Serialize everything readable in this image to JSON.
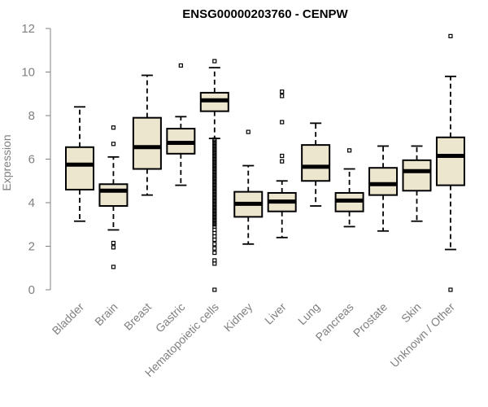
{
  "chart_data": {
    "type": "box",
    "title": "ENSG00000203760 - CENPW",
    "ylabel": "Expression",
    "ylim": [
      0,
      12
    ],
    "yticks": [
      0,
      2,
      4,
      6,
      8,
      10,
      12
    ],
    "grid": false,
    "box_color": "#ede6cf",
    "categories": [
      "Bladder",
      "Brain",
      "Breast",
      "Gastric",
      "Hematopoietic cells",
      "Kidney",
      "Liver",
      "Lung",
      "Pancreas",
      "Prostate",
      "Skin",
      "Unknown / Other"
    ],
    "boxes": [
      {
        "category": "Bladder",
        "whisker_low": 3.15,
        "q1": 4.6,
        "median": 5.75,
        "q3": 6.55,
        "whisker_high": 8.4,
        "outliers": []
      },
      {
        "category": "Brain",
        "whisker_low": 2.75,
        "q1": 3.85,
        "median": 4.55,
        "q3": 4.85,
        "whisker_high": 6.1,
        "outliers": [
          1.05,
          1.95,
          2.15,
          6.7,
          7.45
        ]
      },
      {
        "category": "Breast",
        "whisker_low": 4.35,
        "q1": 5.55,
        "median": 6.55,
        "q3": 7.9,
        "whisker_high": 9.85,
        "outliers": []
      },
      {
        "category": "Gastric",
        "whisker_low": 4.8,
        "q1": 6.25,
        "median": 6.75,
        "q3": 7.4,
        "whisker_high": 7.95,
        "outliers": [
          10.3
        ]
      },
      {
        "category": "Hematopoietic cells",
        "whisker_low": 6.95,
        "q1": 8.2,
        "median": 8.7,
        "q3": 9.05,
        "whisker_high": 10.2,
        "outliers": [
          10.5,
          0.0,
          1.2,
          1.35,
          1.7,
          1.9,
          2.1,
          2.3,
          2.45,
          2.6,
          2.75,
          2.9,
          3.0,
          3.1,
          3.2,
          3.3,
          3.4,
          3.5,
          3.6,
          3.7,
          3.8,
          3.9,
          4.0,
          4.1,
          4.2,
          4.3,
          4.4,
          4.5,
          4.6,
          4.7,
          4.8,
          4.9,
          5.0,
          5.1,
          5.2,
          5.3,
          5.4,
          5.5,
          5.6,
          5.7,
          5.8,
          5.9,
          6.0,
          6.1,
          6.2,
          6.3,
          6.4,
          6.5,
          6.6,
          6.7,
          6.8,
          6.9
        ]
      },
      {
        "category": "Kidney",
        "whisker_low": 2.1,
        "q1": 3.35,
        "median": 3.95,
        "q3": 4.5,
        "whisker_high": 5.7,
        "outliers": [
          7.25
        ]
      },
      {
        "category": "Liver",
        "whisker_low": 2.4,
        "q1": 3.6,
        "median": 4.05,
        "q3": 4.45,
        "whisker_high": 5.0,
        "outliers": [
          5.9,
          6.15,
          7.7,
          8.9,
          9.1
        ]
      },
      {
        "category": "Lung",
        "whisker_low": 3.85,
        "q1": 5.0,
        "median": 5.65,
        "q3": 6.65,
        "whisker_high": 7.65,
        "outliers": []
      },
      {
        "category": "Pancreas",
        "whisker_low": 2.9,
        "q1": 3.6,
        "median": 4.1,
        "q3": 4.45,
        "whisker_high": 5.55,
        "outliers": [
          6.4
        ]
      },
      {
        "category": "Prostate",
        "whisker_low": 2.7,
        "q1": 4.35,
        "median": 4.85,
        "q3": 5.6,
        "whisker_high": 6.6,
        "outliers": []
      },
      {
        "category": "Skin",
        "whisker_low": 3.15,
        "q1": 4.55,
        "median": 5.45,
        "q3": 5.95,
        "whisker_high": 6.6,
        "outliers": []
      },
      {
        "category": "Unknown / Other",
        "whisker_low": 1.85,
        "q1": 4.8,
        "median": 6.15,
        "q3": 7.0,
        "whisker_high": 9.8,
        "outliers": [
          0.0,
          11.65
        ]
      }
    ]
  }
}
